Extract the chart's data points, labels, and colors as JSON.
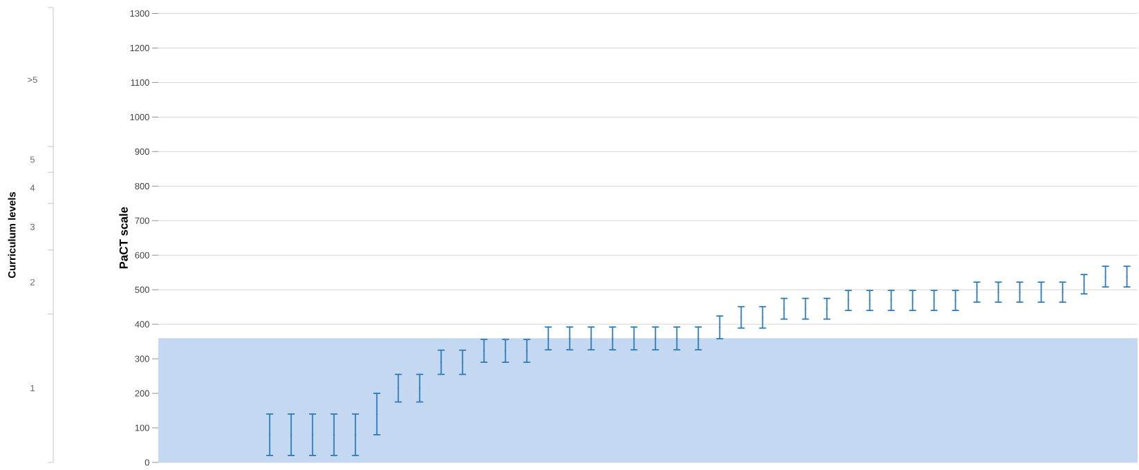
{
  "chart_data": {
    "type": "scatter",
    "ylabel": "PaCT scale",
    "categories": [
      null,
      null,
      null,
      null,
      null,
      null,
      null,
      null,
      null,
      null,
      null,
      null,
      null,
      null,
      null,
      null,
      null,
      null,
      null,
      null,
      null,
      null,
      null,
      null,
      null,
      null,
      null,
      null,
      null,
      null,
      null,
      null,
      null,
      null,
      null,
      null,
      null,
      null,
      null,
      null,
      null,
      null,
      null,
      null,
      null,
      null
    ],
    "series": [
      {
        "color": "#2a7ab8",
        "values": [
          null,
          null,
          null,
          null,
          null,
          80,
          80,
          80,
          80,
          80,
          140,
          215,
          215,
          290,
          290,
          323,
          323,
          323,
          359,
          359,
          359,
          359,
          359,
          359,
          359,
          359,
          391,
          420,
          420,
          445,
          445,
          445,
          469,
          469,
          469,
          469,
          469,
          469,
          493,
          493,
          493,
          493,
          493,
          516,
          538,
          538
        ],
        "errors": [
          null,
          null,
          null,
          null,
          null,
          60,
          60,
          60,
          60,
          60,
          60,
          40,
          40,
          35,
          35,
          33,
          33,
          33,
          33,
          33,
          33,
          33,
          33,
          33,
          33,
          33,
          33,
          31,
          31,
          30,
          30,
          30,
          29,
          29,
          29,
          29,
          29,
          29,
          29,
          29,
          29,
          29,
          29,
          28,
          30,
          30
        ]
      }
    ],
    "grid": "y",
    "tick_labels": "y",
    "ylim": [
      0,
      1300
    ],
    "yticks": [
      0,
      100,
      200,
      300,
      400,
      500,
      600,
      700,
      800,
      900,
      1000,
      1100,
      1200,
      1300
    ],
    "bands": [
      {
        "axis": "y",
        "from": 0,
        "to": 360,
        "color": "#c5d8f1"
      }
    ],
    "annotations": [
      "Curriculum levels",
      "1",
      "2",
      "3",
      "4",
      "5",
      ">5"
    ]
  }
}
